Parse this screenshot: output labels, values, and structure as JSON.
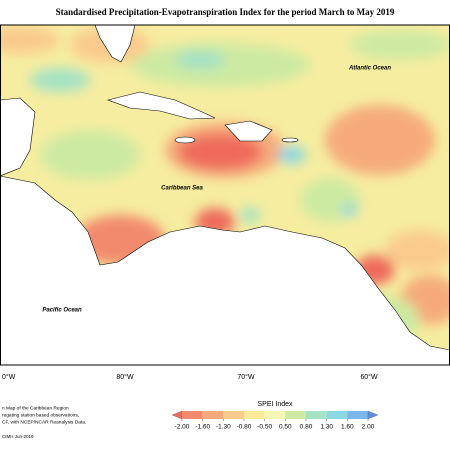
{
  "map": {
    "title": "Standardised Precipitation-Evapotranspiration Index for the period March to May 2019",
    "labels": {
      "atlantic": "Atlantic Ocean",
      "caribbean": "Caribbean Sea",
      "pacific": "Pacific Ocean"
    },
    "longitudes": [
      "0°W",
      "80°W",
      "70°W",
      "60°W"
    ],
    "notes": [
      "n Map of the Caribbean Region",
      "regating station based observations,",
      "CF, with NCEP/NCAR Reanalysis Data."
    ],
    "credit": "CIMH Jun-2019",
    "legend": {
      "title": "SPEI Index",
      "ticks": [
        {
          "value": -2,
          "label": "-2.00"
        },
        {
          "value": -1.6,
          "label": "-1.60"
        },
        {
          "value": -1.3,
          "label": "-1.30"
        },
        {
          "value": -0.8,
          "label": "-0.80"
        },
        {
          "value": -0.5,
          "label": "-0.50"
        },
        {
          "value": 0.5,
          "label": "0.50"
        },
        {
          "value": 0.8,
          "label": "0.80"
        },
        {
          "value": 1.3,
          "label": "1.30"
        },
        {
          "value": 1.6,
          "label": "1.60"
        },
        {
          "value": 2,
          "label": "2.00"
        }
      ],
      "colors": [
        "#ee6a5c",
        "#f28a6d",
        "#f6aa7c",
        "#facb8c",
        "#fde99a",
        "#f4f6b4",
        "#cdeaa2",
        "#a6e2c4",
        "#8cd8e2",
        "#7ab6ea",
        "#5f8ee0"
      ]
    }
  }
}
